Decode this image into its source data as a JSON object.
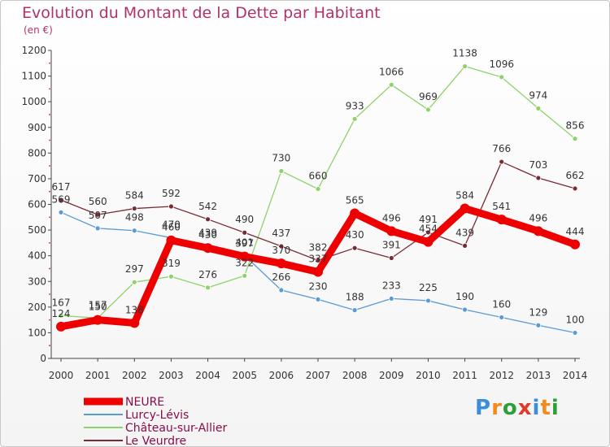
{
  "chart_data": {
    "type": "line",
    "title": "Evolution du Montant de la Dette par Habitant",
    "subtitle": "(en €)",
    "x": [
      "2000",
      "2001",
      "2002",
      "2003",
      "2004",
      "2005",
      "2006",
      "2007",
      "2008",
      "2009",
      "2010",
      "2011",
      "2012",
      "2013",
      "2014"
    ],
    "ylim": [
      0,
      1200
    ],
    "yticks": [
      0,
      100,
      200,
      300,
      400,
      500,
      600,
      700,
      800,
      900,
      1000,
      1100,
      1200
    ],
    "grid": false,
    "legend_position": "bottom-left",
    "series": [
      {
        "name": "NEURE",
        "color": "#ee0000",
        "values": [
          124,
          150,
          138,
          460,
          430,
          397,
          370,
          337,
          565,
          496,
          454,
          584,
          541,
          496,
          444
        ],
        "labels": [
          "124",
          "150",
          "138",
          "460",
          "430",
          "397",
          "370",
          "337",
          "565",
          "496",
          "454",
          "584",
          "541",
          "496",
          "444"
        ]
      },
      {
        "name": "Lurcy-Lévis",
        "color": "#5b9bd5",
        "values": [
          569,
          507,
          498,
          470,
          439,
          401,
          266,
          230,
          188,
          233,
          225,
          190,
          160,
          129,
          100
        ],
        "labels": [
          "569",
          "507",
          "498",
          "470",
          "439",
          "401",
          "266",
          "230",
          "188",
          "233",
          "225",
          "190",
          "160",
          "129",
          "100"
        ]
      },
      {
        "name": "Château-sur-Allier",
        "color": "#8fd16a",
        "values": [
          167,
          157,
          297,
          319,
          276,
          322,
          730,
          660,
          933,
          1066,
          969,
          1138,
          1096,
          974,
          856
        ],
        "labels": [
          "167",
          "157",
          "297",
          "319",
          "276",
          "322",
          "730",
          "660",
          "933",
          "1066",
          "969",
          "1138",
          "1096",
          "974",
          "856"
        ]
      },
      {
        "name": "Le Veurdre",
        "color": "#7a2a35",
        "values": [
          617,
          560,
          584,
          592,
          542,
          490,
          437,
          382,
          430,
          391,
          491,
          439,
          766,
          703,
          662
        ],
        "labels": [
          "617",
          "560",
          "584",
          "592",
          "542",
          "490",
          "437",
          "382",
          "430",
          "391",
          "491",
          "439",
          "766",
          "703",
          "662"
        ]
      }
    ]
  },
  "logo": {
    "text": "Proxiti",
    "letters": [
      "P",
      "r",
      "o",
      "x",
      "i",
      "t",
      "i"
    ],
    "colors": [
      "#3a8fd8",
      "#f08c1e",
      "#2e9e3a",
      "#e03a2a",
      "#3a8fd8",
      "#f08c1e",
      "#2e9e3a"
    ]
  }
}
